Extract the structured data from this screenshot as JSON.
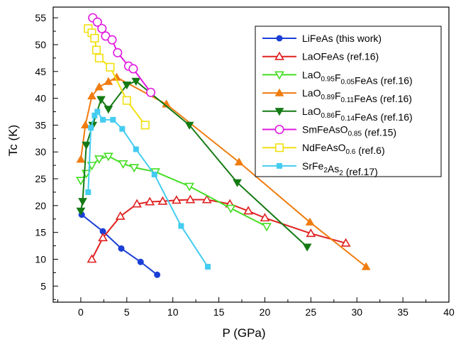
{
  "chart_data": {
    "type": "line",
    "xlabel": "P (GPa)",
    "ylabel": "Tc (K)",
    "xlim": [
      -3,
      40
    ],
    "ylim": [
      2,
      57
    ],
    "xticks": [
      0,
      5,
      10,
      15,
      20,
      25,
      30,
      35,
      40
    ],
    "yticks": [
      5,
      10,
      15,
      20,
      25,
      30,
      35,
      40,
      45,
      50,
      55
    ],
    "legend_position": "top-right",
    "series": [
      {
        "name": "LiFeAs (this work)",
        "legend_parts": [
          [
            "LiFeAs (this work)",
            ""
          ]
        ],
        "color": "#1a3fd6",
        "marker": "circle-filled",
        "x": [
          0.1,
          2.4,
          4.4,
          6.5,
          8.3
        ],
        "y": [
          18.3,
          15.2,
          12.0,
          9.5,
          7.1
        ]
      },
      {
        "name": "LaOFeAs (ref.16)",
        "legend_parts": [
          [
            "LaOFeAs (ref.16)",
            ""
          ]
        ],
        "color": "#e02020",
        "marker": "triangle-up-open",
        "x": [
          1.2,
          2.4,
          4.3,
          6.1,
          7.5,
          8.9,
          10.4,
          11.9,
          13.7,
          16.2,
          18.2,
          20.0,
          25.0,
          28.8
        ],
        "y": [
          10.0,
          14.0,
          18.0,
          20.3,
          20.7,
          20.8,
          21.0,
          21.1,
          21.1,
          20.3,
          19.0,
          17.7,
          14.8,
          13.0
        ]
      },
      {
        "name": "LaO0.95F0.05FeAs (ref.16)",
        "legend_parts": [
          [
            "LaO",
            ""
          ],
          [
            "0.95",
            "sub"
          ],
          [
            "F",
            ""
          ],
          [
            "0.05",
            "sub"
          ],
          [
            "FeAs (ref.16)",
            ""
          ]
        ],
        "color": "#44dd22",
        "marker": "triangle-down-open",
        "x": [
          0.0,
          0.6,
          1.2,
          2.0,
          3.0,
          4.6,
          5.8,
          8.1,
          11.8,
          16.3,
          20.2
        ],
        "y": [
          24.7,
          26.0,
          27.5,
          28.7,
          29.2,
          27.8,
          27.1,
          26.3,
          23.6,
          19.5,
          16.1
        ]
      },
      {
        "name": "LaO0.89F0.11FeAs (ref.16)",
        "legend_parts": [
          [
            "LaO",
            ""
          ],
          [
            "0.89",
            "sub"
          ],
          [
            "F",
            ""
          ],
          [
            "0.11",
            "sub"
          ],
          [
            "FeAs (ref.16)",
            ""
          ]
        ],
        "color": "#f07c10",
        "marker": "triangle-up-filled",
        "x": [
          0.0,
          0.5,
          1.2,
          2.0,
          3.0,
          3.9,
          9.3,
          17.2,
          24.9,
          31.0
        ],
        "y": [
          28.6,
          35.0,
          40.4,
          42.1,
          43.1,
          43.9,
          38.9,
          28.1,
          16.9,
          8.6
        ]
      },
      {
        "name": "LaO0.86F0.14FeAs (ref.16)",
        "legend_parts": [
          [
            "LaO",
            ""
          ],
          [
            "0.86",
            "sub"
          ],
          [
            "F",
            ""
          ],
          [
            "0.14",
            "sub"
          ],
          [
            "FeAs (ref.16)",
            ""
          ]
        ],
        "color": "#147a14",
        "marker": "triangle-down-filled",
        "x": [
          0.0,
          0.2,
          0.6,
          1.3,
          2.2,
          3.0,
          5.0,
          6.0,
          11.8,
          17.0,
          24.6
        ],
        "y": [
          19.0,
          20.8,
          31.3,
          35.0,
          39.8,
          38.0,
          42.5,
          43.2,
          35.0,
          24.3,
          12.3
        ]
      },
      {
        "name": "SmFeAsO0.85 (ref.15)",
        "legend_parts": [
          [
            "SmFeAsO",
            ""
          ],
          [
            "0.85",
            "sub"
          ],
          [
            " (ref.15)",
            ""
          ]
        ],
        "color": "#e01ae0",
        "marker": "circle-open",
        "x": [
          1.3,
          1.8,
          2.3,
          2.7,
          3.4,
          4.0,
          5.2,
          5.7,
          7.6
        ],
        "y": [
          55.0,
          54.2,
          53.0,
          51.6,
          50.9,
          48.5,
          46.0,
          45.5,
          41.1
        ]
      },
      {
        "name": "NdFeAsO0.6 (ref.6)",
        "legend_parts": [
          [
            "NdFeAsO",
            ""
          ],
          [
            "0.6",
            "sub"
          ],
          [
            " (ref.6)",
            ""
          ]
        ],
        "color": "#f0e010",
        "marker": "square-open",
        "x": [
          0.8,
          1.2,
          1.5,
          1.7,
          2.0,
          3.2,
          5.0,
          7.0
        ],
        "y": [
          53.0,
          52.2,
          51.2,
          49.0,
          47.5,
          45.8,
          39.6,
          35.0
        ]
      },
      {
        "name": "SrFe2As2 (ref.17)",
        "legend_parts": [
          [
            "SrFe",
            ""
          ],
          [
            "2",
            "sub"
          ],
          [
            "As",
            ""
          ],
          [
            "2",
            "sub"
          ],
          [
            " (ref.17)",
            ""
          ]
        ],
        "color": "#44ccf0",
        "marker": "square-filled",
        "x": [
          0.8,
          1.1,
          1.5,
          1.8,
          2.4,
          3.5,
          4.5,
          6.0,
          8.0,
          10.9,
          13.8
        ],
        "y": [
          22.5,
          34.5,
          36.8,
          37.5,
          36.0,
          36.0,
          34.3,
          30.5,
          25.8,
          16.2,
          8.6
        ]
      }
    ]
  }
}
